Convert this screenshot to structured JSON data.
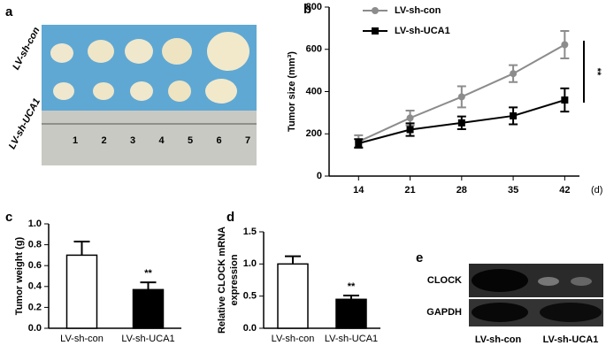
{
  "panel_labels": [
    "a",
    "b",
    "c",
    "d",
    "e"
  ],
  "photo": {
    "row_labels": [
      "LV-sh-con",
      "LV-sh-UCA1"
    ],
    "ruler_numbers": [
      "1",
      "2",
      "3",
      "4",
      "5",
      "6",
      "7"
    ]
  },
  "chart_data": [
    {
      "type": "line",
      "y_label": "Tumor size (mm³)",
      "x_label": "(d)",
      "x": [
        14,
        21,
        28,
        35,
        42
      ],
      "xlim": [
        10,
        44
      ],
      "xticks": [
        14,
        21,
        28,
        35,
        42
      ],
      "ylim": [
        0,
        800
      ],
      "yticks": [
        0,
        200,
        400,
        600,
        800
      ],
      "legend": "upper left",
      "annotation": "**",
      "series": [
        {
          "name": "LV-sh-con",
          "color": "#8c8c8c",
          "values": [
            163,
            275,
            375,
            485,
            622
          ],
          "errors": [
            30,
            35,
            50,
            40,
            65
          ]
        },
        {
          "name": "LV-sh-UCA1",
          "color": "#000000",
          "values": [
            155,
            220,
            252,
            285,
            360
          ],
          "errors": [
            20,
            30,
            30,
            40,
            55
          ]
        }
      ]
    },
    {
      "type": "bar",
      "y_label": [
        "Tumor weight (g)"
      ],
      "categories": [
        "LV-sh-con",
        "LV-sh-UCA1"
      ],
      "values": [
        0.7,
        0.37
      ],
      "errors": [
        0.13,
        0.07
      ],
      "colors": [
        "#ffffff",
        "#000000"
      ],
      "ylim": [
        0,
        1
      ],
      "yticks": [
        {
          "value": 0,
          "label": "0.0"
        },
        0.2,
        0.4,
        0.6,
        0.8,
        {
          "value": 1,
          "label": "1.0"
        }
      ],
      "annotation": "**"
    },
    {
      "type": "bar",
      "y_label": [
        "Relative CLOCK mRNA",
        "expression"
      ],
      "categories": [
        "LV-sh-con",
        "LV-sh-UCA1"
      ],
      "values": [
        1.0,
        0.45
      ],
      "errors": [
        0.12,
        0.06
      ],
      "colors": [
        "#ffffff",
        "#000000"
      ],
      "ylim": [
        0,
        1.5
      ],
      "yticks": [
        {
          "value": 0,
          "label": "0.0"
        },
        0.5,
        {
          "value": 1,
          "label": "1.0"
        },
        {
          "value": 1.5,
          "label": "1.5"
        }
      ],
      "annotation": "**"
    }
  ],
  "blot": {
    "bands": [
      "CLOCK",
      "GAPDH"
    ],
    "lanes": [
      "LV-sh-con",
      "LV-sh-UCA1"
    ]
  }
}
